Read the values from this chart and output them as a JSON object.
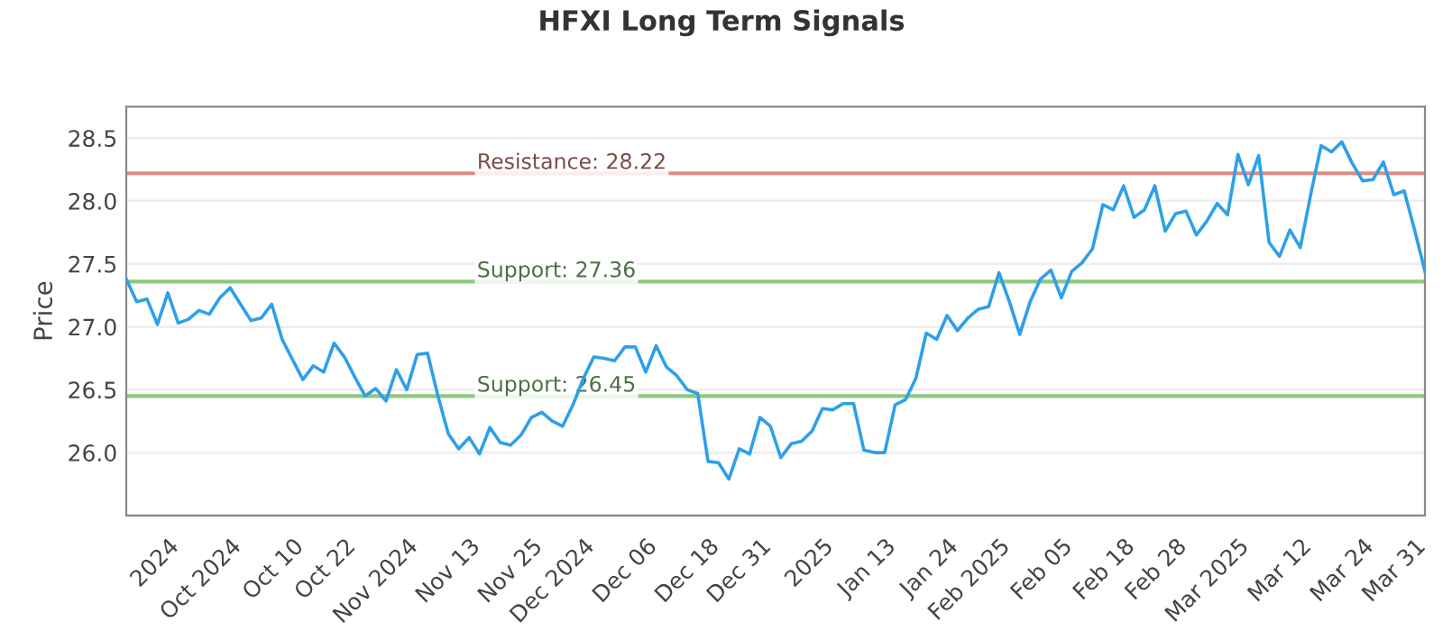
{
  "chart_data": {
    "type": "line",
    "title": "HFXI Long Term Signals",
    "ylabel": "Price",
    "categories": [
      null,
      null,
      null,
      null,
      "2024",
      null,
      null,
      null,
      null,
      null,
      "Oct 2024",
      null,
      null,
      null,
      null,
      null,
      "Oct 10",
      null,
      null,
      null,
      null,
      "Oct 22",
      null,
      null,
      null,
      null,
      null,
      "Nov 2024",
      null,
      null,
      null,
      null,
      null,
      "Nov 13",
      null,
      null,
      null,
      null,
      null,
      "Nov 25",
      null,
      null,
      null,
      null,
      "Dec 2024",
      null,
      null,
      null,
      null,
      null,
      "Dec 06",
      null,
      null,
      null,
      null,
      null,
      "Dec 18",
      null,
      null,
      null,
      null,
      "Dec 31",
      null,
      null,
      null,
      null,
      null,
      "2025",
      null,
      null,
      null,
      null,
      null,
      "Jan 13",
      null,
      null,
      null,
      null,
      null,
      "Jan 24",
      null,
      null,
      null,
      null,
      "Feb 2025",
      null,
      null,
      null,
      null,
      null,
      "Feb 05",
      null,
      null,
      null,
      null,
      null,
      "Feb 18",
      null,
      null,
      null,
      null,
      "Feb 28",
      null,
      null,
      null,
      null,
      null,
      "Mar 2025",
      null,
      null,
      null,
      null,
      null,
      "Mar 12",
      null,
      null,
      null,
      null,
      null,
      "Mar 24",
      null,
      null,
      null,
      null,
      "Mar 31",
      null
    ],
    "series": [
      {
        "color": "#2ea0e8",
        "values": [
          27.38,
          27.2,
          27.22,
          27.02,
          27.27,
          27.03,
          27.06,
          27.13,
          27.1,
          27.23,
          27.31,
          27.18,
          27.05,
          27.07,
          27.18,
          26.9,
          26.74,
          26.58,
          26.69,
          26.64,
          26.87,
          26.76,
          26.6,
          26.45,
          26.51,
          26.41,
          26.66,
          26.5,
          26.78,
          26.79,
          26.45,
          26.15,
          26.03,
          26.12,
          25.99,
          26.2,
          26.08,
          26.06,
          26.14,
          26.28,
          26.32,
          26.25,
          26.21,
          26.38,
          26.59,
          26.76,
          26.75,
          26.73,
          26.84,
          26.84,
          26.64,
          26.85,
          26.68,
          26.61,
          26.5,
          26.47,
          25.93,
          25.92,
          25.79,
          26.03,
          25.99,
          26.28,
          26.21,
          25.96,
          26.07,
          26.09,
          26.17,
          26.35,
          26.34,
          26.39,
          26.39,
          26.02,
          26.0,
          26.0,
          26.38,
          26.42,
          26.59,
          26.95,
          26.9,
          27.09,
          26.97,
          27.07,
          27.14,
          27.16,
          27.43,
          27.2,
          26.94,
          27.2,
          27.38,
          27.45,
          27.23,
          27.44,
          27.51,
          27.62,
          27.97,
          27.93,
          28.12,
          27.87,
          27.93,
          28.12,
          27.76,
          27.9,
          27.92,
          27.73,
          27.84,
          27.98,
          27.89,
          28.37,
          28.13,
          28.36,
          27.67,
          27.56,
          27.77,
          27.63,
          28.05,
          28.44,
          28.39,
          28.47,
          28.3,
          28.16,
          28.17,
          28.31,
          28.05,
          28.08,
          27.77,
          27.44
        ]
      }
    ],
    "ylim": [
      25.5,
      28.75
    ],
    "yticks": [
      {
        "value": 26,
        "label": "26.0"
      },
      26.5,
      {
        "value": 27,
        "label": "27.0"
      },
      27.5,
      {
        "value": 28,
        "label": "28.0"
      },
      28.5
    ],
    "grid": "y",
    "ref_lines": [
      {
        "axis": "y",
        "value": 28.22,
        "label": "Resistance: 28.22",
        "color": "#e08a80"
      },
      {
        "axis": "y",
        "value": 27.36,
        "label": "Support: 27.36",
        "color": "#8cc97e"
      },
      {
        "axis": "y",
        "value": 26.45,
        "label": "Support: 26.45",
        "color": "#8cc97e"
      }
    ]
  }
}
